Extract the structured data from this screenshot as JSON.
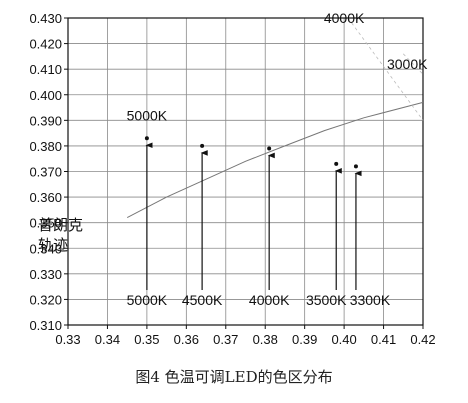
{
  "figure_caption": "图4 色温可调LED的色区分布",
  "chart_data": {
    "type": "scatter",
    "xlim": [
      0.33,
      0.42
    ],
    "ylim": [
      0.31,
      0.43
    ],
    "x_ticks": [
      0.33,
      0.34,
      0.35,
      0.36,
      0.37,
      0.38,
      0.39,
      0.4,
      0.41,
      0.42
    ],
    "y_ticks": [
      0.31,
      0.32,
      0.33,
      0.34,
      0.35,
      0.36,
      0.37,
      0.38,
      0.39,
      0.4,
      0.41,
      0.42,
      0.43
    ],
    "x_tick_labels": [
      "0.33",
      "0.34",
      "0.35",
      "0.36",
      "0.37",
      "0.38",
      "0.39",
      "0.40",
      "0.41",
      "0.42"
    ],
    "y_tick_labels": [
      "0.310",
      "0.320",
      "0.330",
      "0.340",
      "0.350",
      "0.360",
      "0.370",
      "0.380",
      "0.390",
      "0.400",
      "0.410",
      "0.420",
      "0.430"
    ],
    "grid": true,
    "points": [
      {
        "x": 0.35,
        "y": 0.383
      },
      {
        "x": 0.364,
        "y": 0.38
      },
      {
        "x": 0.381,
        "y": 0.379
      },
      {
        "x": 0.398,
        "y": 0.373
      },
      {
        "x": 0.403,
        "y": 0.372
      }
    ],
    "planck_locus": {
      "label": "普朗克\n轨迹",
      "points": [
        {
          "x": 0.345,
          "y": 0.352
        },
        {
          "x": 0.355,
          "y": 0.36
        },
        {
          "x": 0.365,
          "y": 0.367
        },
        {
          "x": 0.375,
          "y": 0.374
        },
        {
          "x": 0.385,
          "y": 0.38
        },
        {
          "x": 0.395,
          "y": 0.386
        },
        {
          "x": 0.405,
          "y": 0.391
        },
        {
          "x": 0.42,
          "y": 0.397
        }
      ]
    },
    "bottom_labels": [
      {
        "text": "5000K",
        "x": 0.35
      },
      {
        "text": "4500K",
        "x": 0.364
      },
      {
        "text": "4000K",
        "x": 0.381
      },
      {
        "text": "3500K",
        "x": 0.398
      },
      {
        "text": "3300K",
        "x": 0.403
      }
    ],
    "top_labels": [
      {
        "text": "5000K",
        "x": 0.35,
        "y": 0.39
      },
      {
        "text": "4000K",
        "x": 0.4,
        "y": 0.428
      },
      {
        "text": "3000K",
        "x": 0.416,
        "y": 0.41
      }
    ]
  }
}
